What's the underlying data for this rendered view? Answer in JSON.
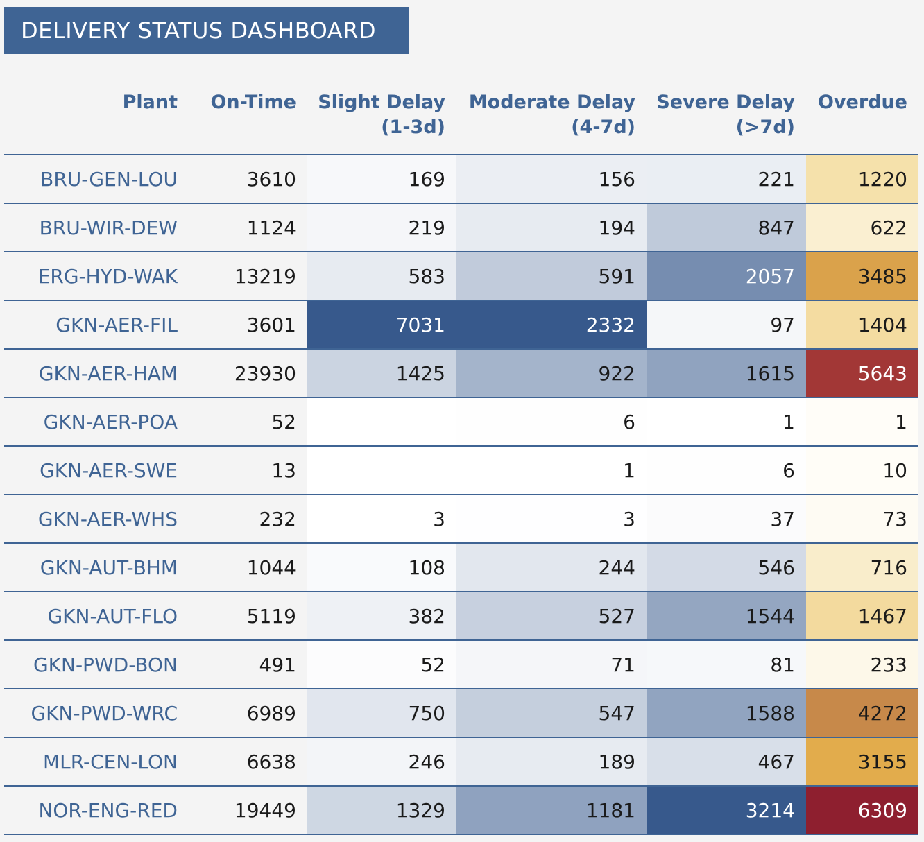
{
  "title": "DELIVERY STATUS DASHBOARD",
  "colors": {
    "accent": "#3f6494",
    "blue_ramp": [
      "#ffffff",
      "#37598c"
    ],
    "orange_ramp": [
      "#fffdf8",
      "#f5e0a8",
      "#e2ac4c",
      "#c4854a",
      "#a53a37",
      "#8e1f2f"
    ]
  },
  "chart_data": {
    "type": "table",
    "title": "DELIVERY STATUS DASHBOARD",
    "columns": [
      "Plant",
      "On-Time",
      "Slight Delay\n(1-3d)",
      "Moderate Delay\n(4-7d)",
      "Severe Delay\n(>7d)",
      "Overdue"
    ],
    "rows": [
      {
        "plant": "BRU-GEN-LOU",
        "on_time": 3610,
        "slight": 169,
        "moderate": 156,
        "severe": 221,
        "overdue": 1220
      },
      {
        "plant": "BRU-WIR-DEW",
        "on_time": 1124,
        "slight": 219,
        "moderate": 194,
        "severe": 847,
        "overdue": 622
      },
      {
        "plant": "ERG-HYD-WAK",
        "on_time": 13219,
        "slight": 583,
        "moderate": 591,
        "severe": 2057,
        "overdue": 3485
      },
      {
        "plant": "GKN-AER-FIL",
        "on_time": 3601,
        "slight": 7031,
        "moderate": 2332,
        "severe": 97,
        "overdue": 1404
      },
      {
        "plant": "GKN-AER-HAM",
        "on_time": 23930,
        "slight": 1425,
        "moderate": 922,
        "severe": 1615,
        "overdue": 5643
      },
      {
        "plant": "GKN-AER-POA",
        "on_time": 52,
        "slight": null,
        "moderate": 6,
        "severe": 1,
        "overdue": 1
      },
      {
        "plant": "GKN-AER-SWE",
        "on_time": 13,
        "slight": null,
        "moderate": 1,
        "severe": 6,
        "overdue": 10
      },
      {
        "plant": "GKN-AER-WHS",
        "on_time": 232,
        "slight": 3,
        "moderate": 3,
        "severe": 37,
        "overdue": 73
      },
      {
        "plant": "GKN-AUT-BHM",
        "on_time": 1044,
        "slight": 108,
        "moderate": 244,
        "severe": 546,
        "overdue": 716
      },
      {
        "plant": "GKN-AUT-FLO",
        "on_time": 5119,
        "slight": 382,
        "moderate": 527,
        "severe": 1544,
        "overdue": 1467
      },
      {
        "plant": "GKN-PWD-BON",
        "on_time": 491,
        "slight": 52,
        "moderate": 71,
        "severe": 81,
        "overdue": 233
      },
      {
        "plant": "GKN-PWD-WRC",
        "on_time": 6989,
        "slight": 750,
        "moderate": 547,
        "severe": 1588,
        "overdue": 4272
      },
      {
        "plant": "MLR-CEN-LON",
        "on_time": 6638,
        "slight": 246,
        "moderate": 189,
        "severe": 467,
        "overdue": 3155
      },
      {
        "plant": "NOR-ENG-RED",
        "on_time": 19449,
        "slight": 1329,
        "moderate": 1181,
        "severe": 3214,
        "overdue": 6309
      }
    ]
  }
}
